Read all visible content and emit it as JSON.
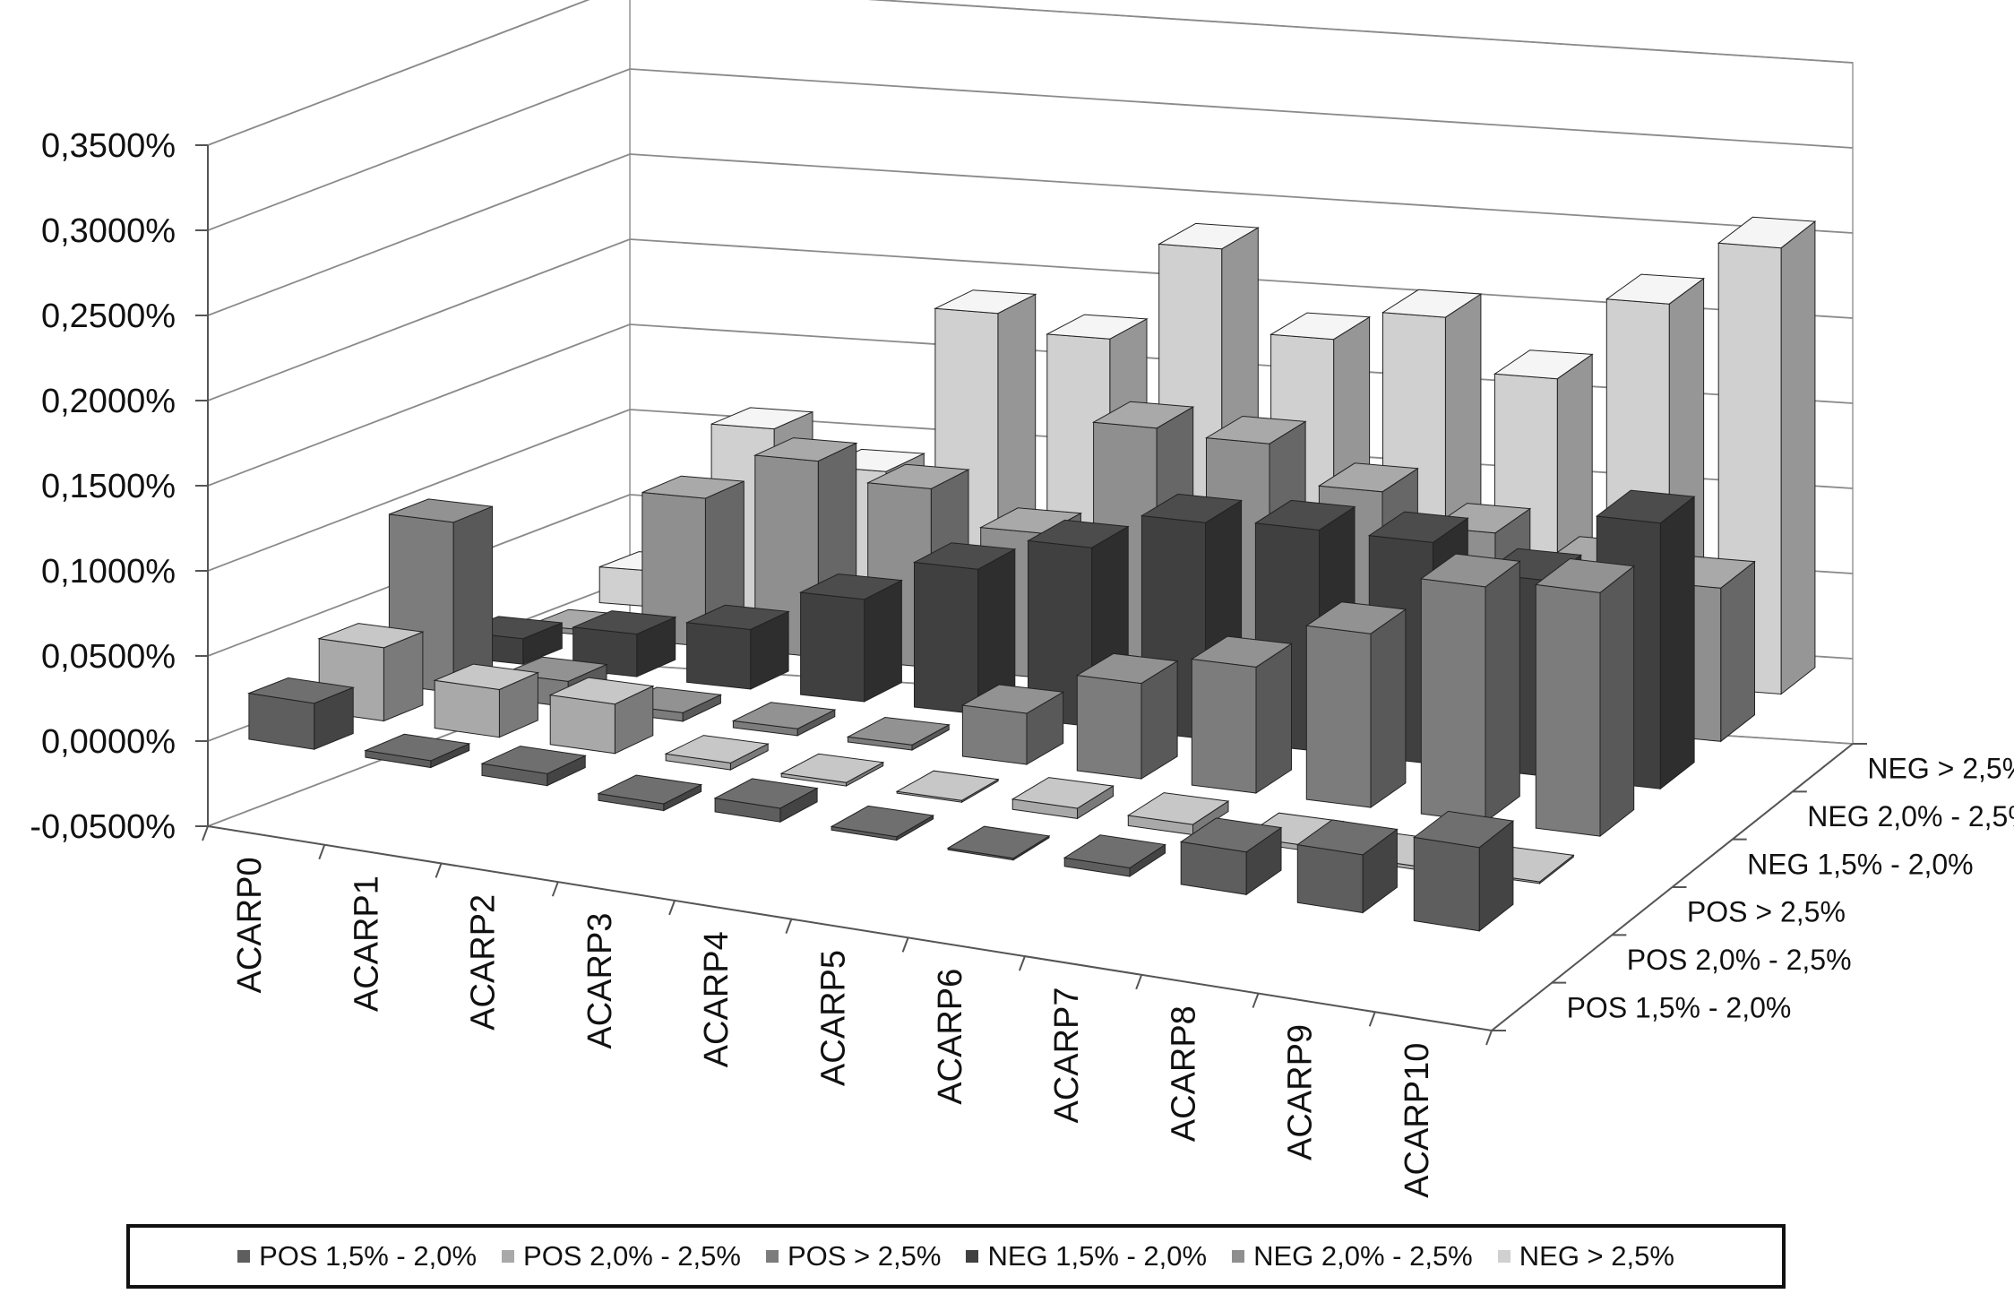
{
  "chart_data": {
    "type": "bar",
    "projection": "3d",
    "title": "",
    "xlabel": "",
    "ylabel": "",
    "categories": [
      "ACARP0",
      "ACARP1",
      "ACARP2",
      "ACARP3",
      "ACARP4",
      "ACARP5",
      "ACARP6",
      "ACARP7",
      "ACARP8",
      "ACARP9",
      "ACARP10"
    ],
    "y_ticks": [
      "-0,0500%",
      "0,0000%",
      "0,0500%",
      "0,1000%",
      "0,1500%",
      "0,2000%",
      "0,2500%",
      "0,3000%",
      "0,3500%"
    ],
    "ylim": [
      -0.05,
      0.35
    ],
    "grid": true,
    "legend_position": "bottom",
    "series": [
      {
        "name": "POS 1,5% - 2,0%",
        "color": "#5e5e5e",
        "values": [
          0.027,
          0.004,
          0.007,
          -0.004,
          0.008,
          0.002,
          -0.001,
          0.005,
          0.025,
          0.034,
          0.049
        ]
      },
      {
        "name": "POS 2,0% - 2,5%",
        "color": "#a9a9a9",
        "values": [
          0.043,
          0.028,
          0.029,
          0.004,
          0.002,
          0.001,
          0.006,
          0.006,
          0.003,
          -0.002,
          0.001
        ]
      },
      {
        "name": "POS > 2,5%",
        "color": "#7c7c7c",
        "values": [
          0.1,
          0.015,
          0.005,
          0.004,
          0.003,
          0.03,
          0.056,
          0.074,
          0.102,
          0.138,
          0.143
        ]
      },
      {
        "name": "NEG 1,5% - 2,0%",
        "color": "#404040",
        "values": [
          0.015,
          0.025,
          0.035,
          0.06,
          0.085,
          0.105,
          0.127,
          0.13,
          0.13,
          0.115,
          0.156
        ]
      },
      {
        "name": "NEG 2,0% - 2,5%",
        "color": "#8f8f8f",
        "values": [
          0.003,
          0.087,
          0.115,
          0.105,
          0.085,
          0.153,
          0.15,
          0.128,
          0.11,
          0.096,
          0.09
        ]
      },
      {
        "name": "NEG > 2,5%",
        "color": "#d0d0d0",
        "values": [
          0.021,
          0.11,
          0.09,
          0.188,
          0.178,
          0.236,
          0.188,
          0.206,
          0.175,
          0.224,
          0.262
        ]
      }
    ]
  }
}
